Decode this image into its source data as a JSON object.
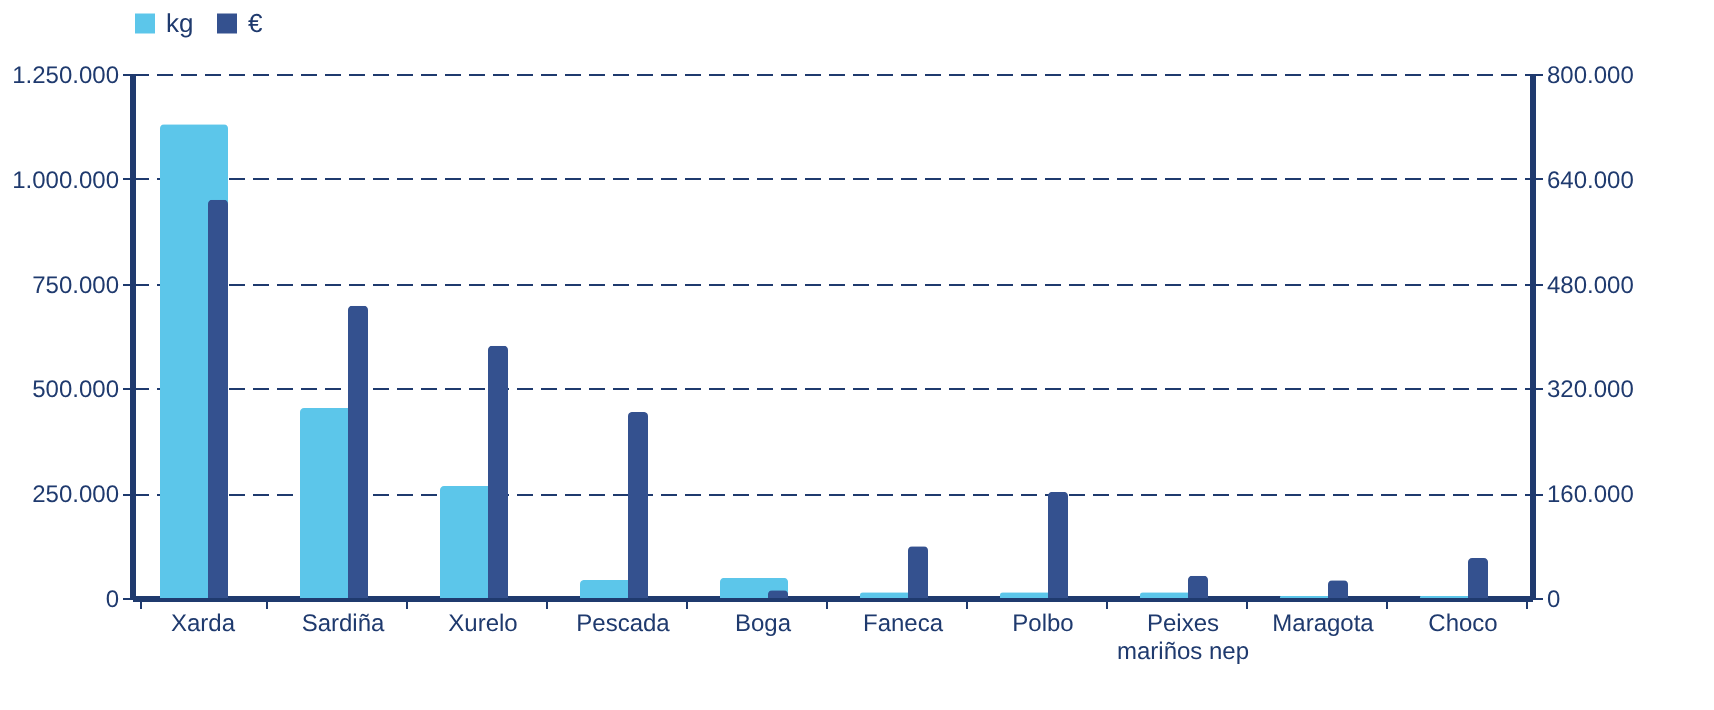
{
  "chart_data": {
    "type": "bar",
    "categories": [
      "Xarda",
      "Sardiña",
      "Xurelo",
      "Pescada",
      "Boga",
      "Faneca",
      "Polbo",
      "Peixes mariños nep",
      "Maragota",
      "Choco"
    ],
    "series": [
      {
        "name": "kg",
        "color": "#5cc6ea",
        "values": [
          1130000,
          453000,
          267000,
          43000,
          48000,
          14000,
          14000,
          14000,
          5000,
          5000
        ]
      },
      {
        "name": "€",
        "color": "#34518f",
        "axis": "y2",
        "values": [
          608000,
          446000,
          385000,
          284000,
          12000,
          79000,
          162000,
          34000,
          27000,
          61000
        ]
      }
    ],
    "ylim": [
      0,
      1250000
    ],
    "yticks": [
      {
        "value": 0,
        "label": "0"
      },
      {
        "value": 250000,
        "label": "250.000"
      },
      {
        "value": 500000,
        "label": "500.000"
      },
      {
        "value": 750000,
        "label": "750.000"
      },
      {
        "value": 1000000,
        "label": "1.000.000"
      },
      {
        "value": 1250000,
        "label": "1.250.000"
      }
    ],
    "y2lim": [
      0,
      800000
    ],
    "y2ticks": [
      {
        "value": 0,
        "label": "0"
      },
      {
        "value": 160000,
        "label": "160.000"
      },
      {
        "value": 320000,
        "label": "320.000"
      },
      {
        "value": 480000,
        "label": "480.000"
      },
      {
        "value": 640000,
        "label": "640.000"
      },
      {
        "value": 800000,
        "label": "800.000"
      }
    ],
    "grid": "y",
    "legend": "top"
  }
}
